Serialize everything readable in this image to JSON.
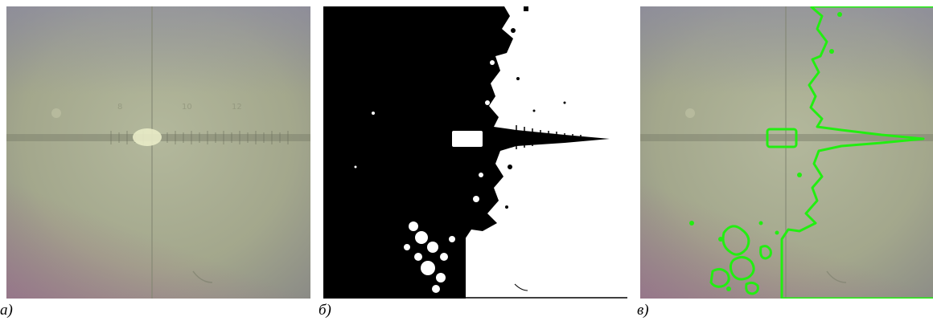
{
  "captions": {
    "a": "а)",
    "b": "б)",
    "c": "в)"
  },
  "panels": {
    "a": {
      "kind": "microscope-photo-original"
    },
    "b": {
      "kind": "binarized-black-white-mask"
    },
    "c": {
      "kind": "photo-with-green-contour-overlay"
    }
  },
  "colors": {
    "photo_base": "#a3a88e",
    "mask_black": "#000000",
    "mask_white": "#ffffff",
    "contour_green": "#22ee11",
    "spot_highlight": "#e9ecc8"
  },
  "scale_numbers": [
    "8",
    "10",
    "12"
  ]
}
